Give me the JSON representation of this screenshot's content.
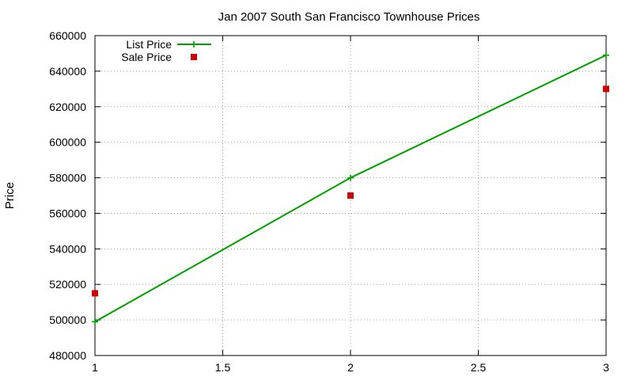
{
  "chart_data": {
    "type": "line",
    "title": "Jan 2007 South San Francisco Townhouse Prices",
    "xlabel": "",
    "ylabel": "Price",
    "xlim": [
      1,
      3
    ],
    "ylim": [
      480000,
      660000
    ],
    "xticks": [
      1,
      1.5,
      2,
      2.5,
      3
    ],
    "xtick_labels": [
      "1",
      "1.5",
      "2",
      "2.5",
      "3"
    ],
    "yticks": [
      480000,
      500000,
      520000,
      540000,
      560000,
      580000,
      600000,
      620000,
      640000,
      660000
    ],
    "ytick_labels": [
      "480000",
      "500000",
      "520000",
      "540000",
      "560000",
      "580000",
      "600000",
      "620000",
      "640000",
      "660000"
    ],
    "grid": true,
    "legend_position": "top-left",
    "series": [
      {
        "name": "List Price",
        "style": "line-with-plus-markers",
        "color": "#00a000",
        "x": [
          1,
          2,
          3
        ],
        "y": [
          499000,
          580000,
          649000
        ]
      },
      {
        "name": "Sale Price",
        "style": "square-markers",
        "color": "#cc0000",
        "x": [
          1,
          2,
          3
        ],
        "y": [
          515000,
          570000,
          630000
        ]
      }
    ]
  }
}
